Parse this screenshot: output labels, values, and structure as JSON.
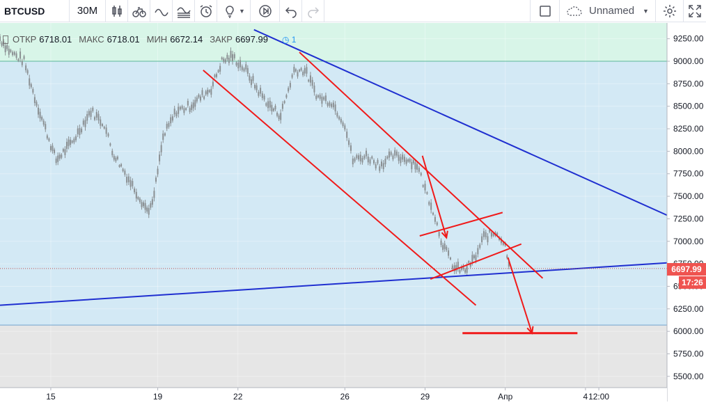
{
  "toolbar": {
    "symbol": "BTCUSD",
    "interval": "30M",
    "layout_name": "Unnamed"
  },
  "legend": {
    "open_label": "ОТКР",
    "open_value": "6718.01",
    "high_label": "МАКС",
    "high_value": "6718.01",
    "low_label": "МИН",
    "low_value": "6672.14",
    "close_label": "ЗАКР",
    "close_value": "6697.99",
    "alert_count": "1"
  },
  "price_tag": "6697.99",
  "time_tag": "17:26",
  "colors": {
    "zone_green": "#d8f5e8",
    "zone_blue": "#d3e9f5",
    "zone_grey": "#e6e6e6",
    "trend_blue": "#1f2fd0",
    "trend_red": "#f01a1a",
    "candle_grey": "#8a8f92",
    "axis_text": "#131722"
  },
  "chart_data": {
    "type": "line",
    "title": "",
    "xlabel": "",
    "ylabel": "",
    "ylim": [
      5375,
      9425
    ],
    "y_ticks": [
      "9250.00",
      "9000.00",
      "8750.00",
      "8500.00",
      "8250.00",
      "8000.00",
      "7750.00",
      "7500.00",
      "7250.00",
      "7000.00",
      "6750.00",
      "6500.00",
      "6250.00",
      "6000.00",
      "5750.00",
      "5500.00"
    ],
    "x_tick_labels": [
      "15",
      "19",
      "22",
      "26",
      "29",
      "Апр",
      "4",
      "12:00"
    ],
    "x_tick_days": [
      15,
      19,
      22,
      26,
      29,
      32,
      35,
      35.5
    ],
    "xlim_days": [
      13.1,
      38.05
    ],
    "series": [
      {
        "x_days": [
          13.1,
          13.5,
          14.0,
          14.4,
          14.8,
          15.2,
          15.8,
          16.5,
          17.0,
          17.3,
          17.7,
          18.2,
          18.6,
          18.8,
          19.2,
          19.7,
          20.2,
          20.6,
          21.0,
          21.4,
          21.8,
          22.3,
          22.7,
          23.2,
          23.6,
          24.1,
          24.5,
          25.0,
          25.5,
          26.0,
          26.3,
          26.8,
          27.3,
          27.8,
          28.3,
          28.7,
          29.0,
          29.3,
          29.6,
          29.8,
          30.1,
          30.5,
          30.9,
          31.2,
          31.7,
          32.0,
          32.2
        ],
        "y": [
          9250,
          9100,
          9000,
          8600,
          8250,
          7900,
          8100,
          8450,
          8300,
          8000,
          7800,
          7550,
          7350,
          7400,
          8150,
          8450,
          8500,
          8600,
          8700,
          9000,
          9050,
          8900,
          8700,
          8500,
          8400,
          8900,
          8900,
          8600,
          8550,
          8300,
          7900,
          7950,
          7850,
          7950,
          7920,
          7850,
          7580,
          7350,
          7020,
          6880,
          6700,
          6680,
          6830,
          7050,
          7100,
          6950,
          6700
        ]
      }
    ],
    "horizontal_levels": [
      9000,
      6070
    ],
    "zones": [
      {
        "from": 9000,
        "to": 9425,
        "color": "#d8f5e8"
      },
      {
        "from": 6070,
        "to": 9000,
        "color": "#d3e9f5"
      },
      {
        "from": 5375,
        "to": 6070,
        "color": "#e6e6e6"
      }
    ],
    "last_price": 6697.99,
    "trend_lines": [
      {
        "color": "#1f2fd0",
        "from": {
          "day": 22.6,
          "price": 9350
        },
        "to": {
          "day": 38.05,
          "price": 7290
        }
      },
      {
        "color": "#1f2fd0",
        "from": {
          "day": 13.1,
          "price": 6290
        },
        "to": {
          "day": 38.05,
          "price": 6760
        }
      },
      {
        "color": "#f01a1a",
        "from": {
          "day": 20.7,
          "price": 8900
        },
        "to": {
          "day": 30.9,
          "price": 6290
        }
      },
      {
        "color": "#f01a1a",
        "from": {
          "day": 24.3,
          "price": 9100
        },
        "to": {
          "day": 33.4,
          "price": 6590
        }
      },
      {
        "color": "#f01a1a",
        "from": {
          "day": 28.8,
          "price": 7060
        },
        "to": {
          "day": 31.9,
          "price": 7320
        }
      },
      {
        "color": "#f01a1a",
        "from": {
          "day": 29.2,
          "price": 6580
        },
        "to": {
          "day": 32.6,
          "price": 6970
        }
      },
      {
        "color": "#f01a1a",
        "from": {
          "day": 30.4,
          "price": 5980
        },
        "to": {
          "day": 34.7,
          "price": 5980
        }
      }
    ],
    "arrows": [
      {
        "color": "#f01a1a",
        "from": {
          "day": 28.9,
          "price": 7950
        },
        "to": {
          "day": 29.8,
          "price": 7040
        }
      },
      {
        "color": "#f01a1a",
        "from": {
          "day": 32.1,
          "price": 6820
        },
        "to": {
          "day": 33.0,
          "price": 5980
        }
      }
    ]
  }
}
